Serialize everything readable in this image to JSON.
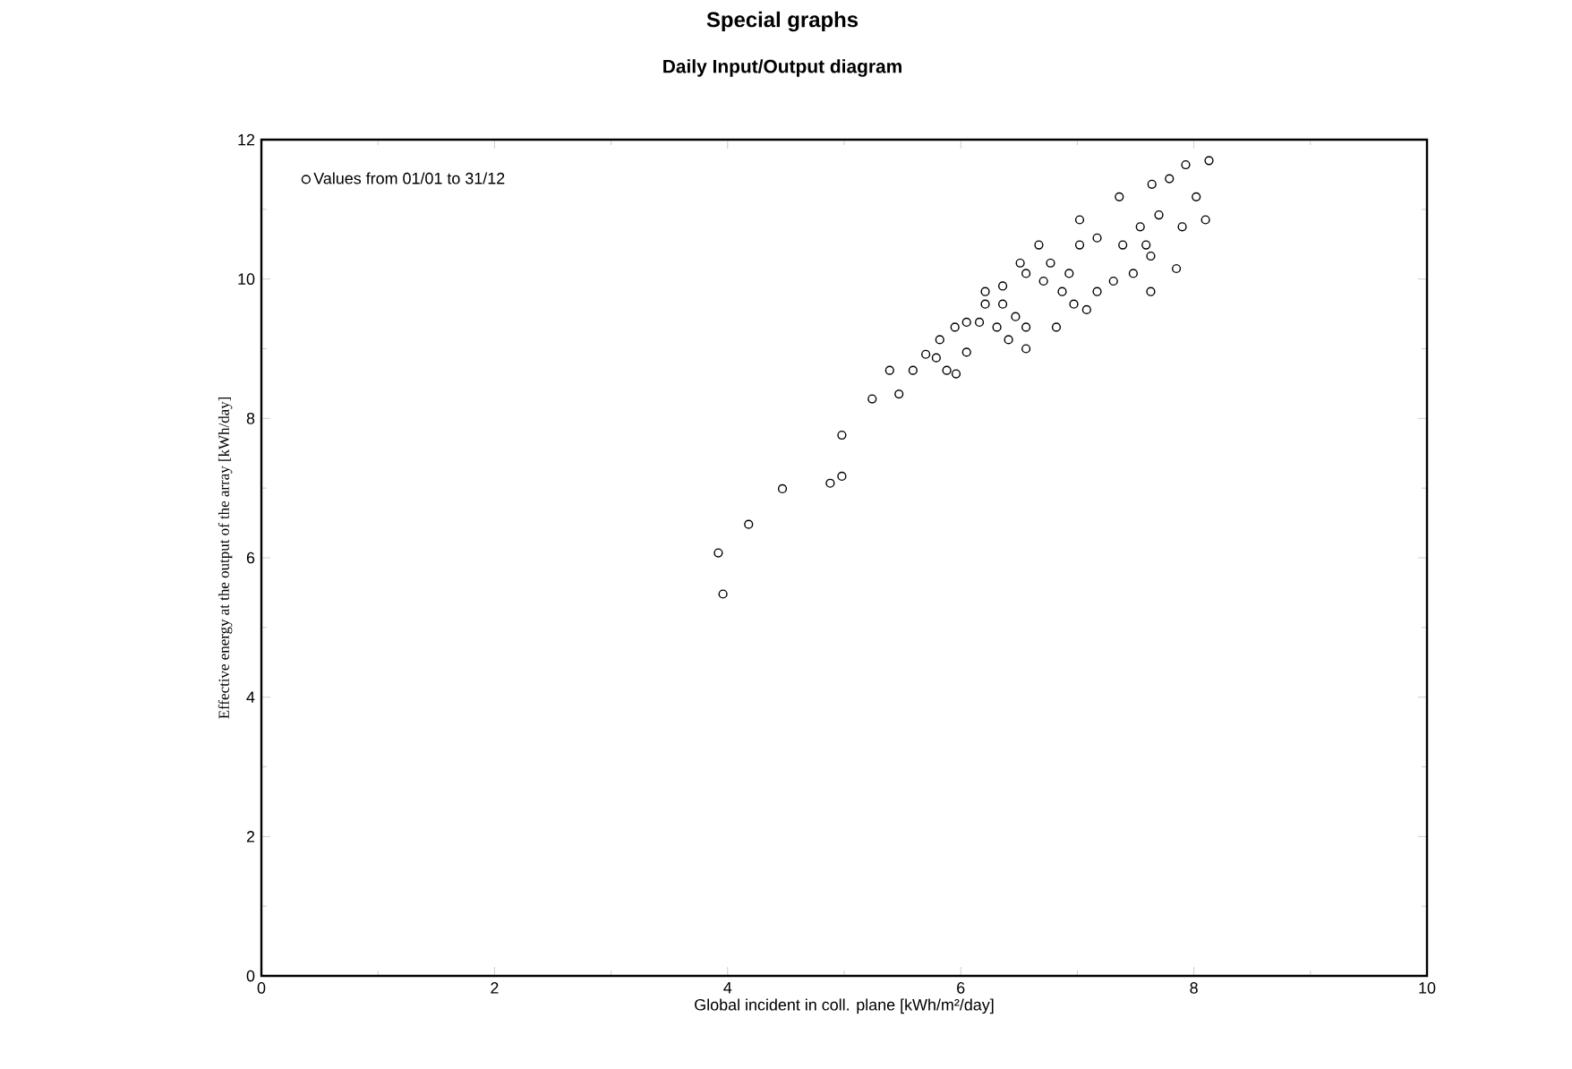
{
  "chart_data": {
    "type": "scatter",
    "title": "Special graphs",
    "subtitle": "Daily Input/Output diagram",
    "xlabel": "Global incident in coll. plane [kWh/m²/day]",
    "ylabel": "Effective energy at the output of the array [kWh/day]",
    "xlim": [
      0,
      10
    ],
    "ylim": [
      0,
      12
    ],
    "xticks": [
      0,
      2,
      4,
      6,
      8,
      10
    ],
    "yticks": [
      0,
      2,
      4,
      6,
      8,
      10,
      12
    ],
    "grid": false,
    "legend": "top left",
    "marker": "circle",
    "series": [
      {
        "name": "Values from 01/01 to 31/12",
        "color": "#000000",
        "x": [
          3.92,
          3.96,
          4.18,
          4.47,
          4.88,
          4.98,
          4.98,
          5.24,
          5.47,
          5.39,
          5.59,
          5.7,
          5.88,
          5.96,
          5.82,
          6.05,
          6.21,
          6.36,
          6.51,
          6.56,
          6.82,
          6.67,
          7.02,
          7.08,
          7.36,
          7.31,
          7.64,
          7.59,
          7.79,
          7.93,
          8.13,
          8.1,
          8.02,
          7.85,
          7.48,
          6.93,
          6.71,
          6.47,
          6.31,
          6.16,
          5.95,
          5.79,
          6.56,
          7.17,
          7.39,
          7.7,
          7.9,
          7.63,
          6.97,
          6.77,
          7.17,
          7.54,
          7.63,
          6.87,
          6.36,
          6.56,
          6.05,
          6.41,
          6.21,
          7.02
        ],
        "values": [
          6.07,
          5.48,
          6.48,
          6.99,
          7.07,
          7.17,
          7.76,
          8.28,
          8.35,
          8.69,
          8.69,
          8.92,
          8.69,
          8.64,
          9.13,
          9.38,
          9.64,
          9.9,
          10.23,
          9.0,
          9.31,
          10.49,
          10.85,
          9.56,
          11.18,
          9.97,
          11.36,
          10.49,
          11.44,
          11.64,
          11.7,
          10.85,
          11.18,
          10.15,
          10.08,
          10.08,
          9.97,
          9.46,
          9.31,
          9.38,
          9.31,
          8.87,
          9.31,
          9.82,
          10.49,
          10.92,
          10.75,
          9.82,
          9.64,
          10.23,
          10.59,
          10.75,
          10.33,
          9.82,
          9.64,
          10.08,
          8.95,
          9.13,
          9.82,
          10.49
        ]
      }
    ]
  }
}
